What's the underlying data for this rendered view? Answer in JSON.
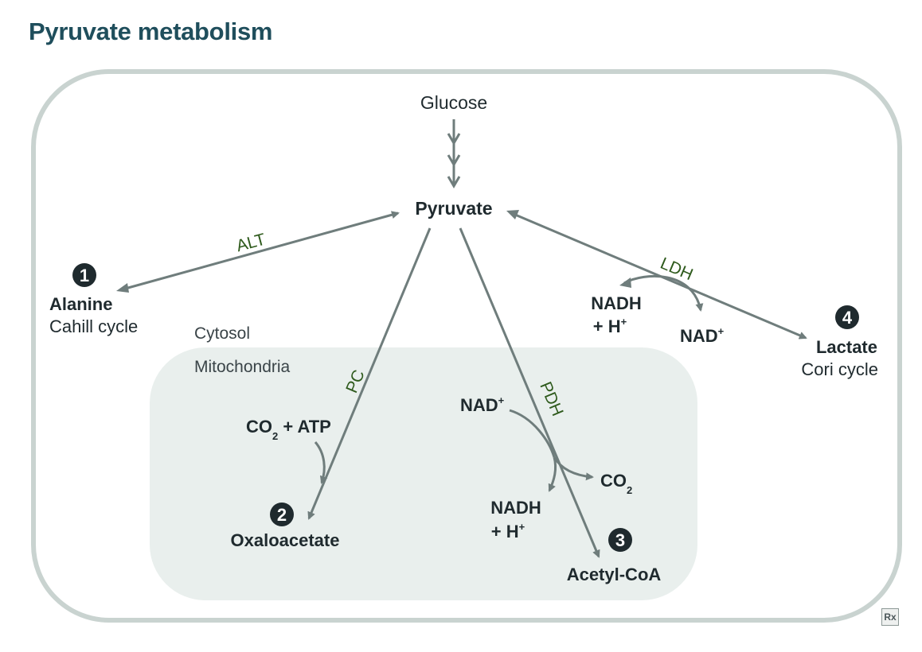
{
  "title": "Pyruvate metabolism",
  "compartments": {
    "cytosol": "Cytosol",
    "mitochondria": "Mitochondria"
  },
  "nodes": {
    "glucose": "Glucose",
    "pyruvate": "Pyruvate",
    "alanine": {
      "name": "Alanine",
      "sub": "Cahill cycle",
      "number": "1"
    },
    "lactate": {
      "name": "Lactate",
      "sub": "Cori cycle",
      "number": "4"
    },
    "oxaloacetate": {
      "name": "Oxaloacetate",
      "number": "2"
    },
    "acetylcoa": {
      "name": "Acetyl-CoA",
      "number": "3"
    }
  },
  "enzymes": {
    "alt": "ALT",
    "ldh": "LDH",
    "pc": "PC",
    "pdh": "PDH"
  },
  "cofactors": {
    "ldh_in_1": "NADH",
    "ldh_in_2": "+ H",
    "ldh_in_sup": "+",
    "ldh_out": "NAD",
    "ldh_out_sup": "+",
    "pc_in_1": "CO",
    "pc_in_sub": "2",
    "pc_in_2": " + ATP",
    "pdh_in": "NAD",
    "pdh_in_sup": "+",
    "pdh_out_co2": "CO",
    "pdh_out_co2_sub": "2",
    "pdh_out_1": "NADH",
    "pdh_out_2": "+ H",
    "pdh_out_sup": "+"
  },
  "logo": "Rx",
  "colors": {
    "title": "#1f4e5c",
    "arrow": "#6f7d7c",
    "cell_border": "#c9d3d0",
    "mito_fill": "#e9efed",
    "enzyme": "#2e5a1c"
  }
}
